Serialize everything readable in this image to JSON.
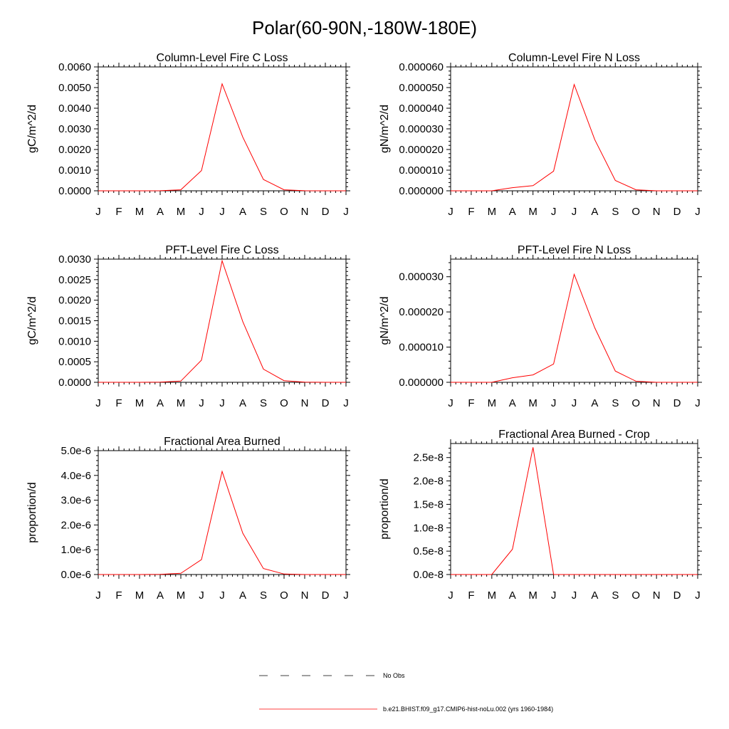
{
  "figure": {
    "title": "Polar(60-90N,-180W-180E)"
  },
  "legend": {
    "entries": [
      {
        "label": "No Obs",
        "style": "dashed",
        "color": "#000000"
      },
      {
        "label": "b.e21.BHIST.f09_g17.CMIP6-hist-noLu.002 (yrs 1960-1984)",
        "style": "solid",
        "color": "#ff0000"
      }
    ]
  },
  "chart_data": [
    {
      "type": "line",
      "title": "Column-Level Fire C Loss",
      "xlabel": "",
      "ylabel": "gC/m^2/d",
      "x": [
        "J",
        "F",
        "M",
        "A",
        "M",
        "J",
        "J",
        "A",
        "S",
        "O",
        "N",
        "D",
        "J"
      ],
      "ylim": [
        0,
        0.006
      ],
      "yticks": [
        "0.0000",
        "0.0010",
        "0.0020",
        "0.0030",
        "0.0040",
        "0.0050",
        "0.0060"
      ],
      "ytick_values": [
        0,
        0.001,
        0.002,
        0.003,
        0.004,
        0.005,
        0.006
      ],
      "grid": false,
      "series": [
        {
          "color": "#ff0000",
          "values": [
            0,
            0,
            0,
            5e-06,
            5e-05,
            0.00098,
            0.00518,
            0.0026,
            0.00055,
            5e-05,
            5e-06,
            0,
            0
          ]
        }
      ]
    },
    {
      "type": "line",
      "title": "Column-Level Fire N Loss",
      "xlabel": "",
      "ylabel": "gN/m^2/d",
      "x": [
        "J",
        "F",
        "M",
        "A",
        "M",
        "J",
        "J",
        "A",
        "S",
        "O",
        "N",
        "D",
        "J"
      ],
      "ylim": [
        0,
        6e-05
      ],
      "yticks": [
        "0.000000",
        "0.000010",
        "0.000020",
        "0.000030",
        "0.000040",
        "0.000050",
        "0.000060"
      ],
      "ytick_values": [
        0,
        1e-05,
        2e-05,
        3e-05,
        4e-05,
        5e-05,
        6e-05
      ],
      "grid": false,
      "series": [
        {
          "color": "#ff0000",
          "values": [
            0,
            0,
            0,
            1.5e-06,
            2.5e-06,
            9.5e-06,
            5.15e-05,
            2.48e-05,
            5e-06,
            5e-07,
            0,
            0,
            0
          ]
        }
      ]
    },
    {
      "type": "line",
      "title": "PFT-Level Fire C Loss",
      "xlabel": "",
      "ylabel": "gC/m^2/d",
      "x": [
        "J",
        "F",
        "M",
        "A",
        "M",
        "J",
        "J",
        "A",
        "S",
        "O",
        "N",
        "D",
        "J"
      ],
      "ylim": [
        0,
        0.003
      ],
      "yticks": [
        "0.0000",
        "0.0005",
        "0.0010",
        "0.0015",
        "0.0020",
        "0.0025",
        "0.0030"
      ],
      "ytick_values": [
        0,
        0.0005,
        0.001,
        0.0015,
        0.002,
        0.0025,
        0.003
      ],
      "grid": false,
      "series": [
        {
          "color": "#ff0000",
          "values": [
            0,
            0,
            0,
            3e-06,
            3e-05,
            0.00054,
            0.00296,
            0.00148,
            0.00032,
            4e-05,
            3e-06,
            0,
            0
          ]
        }
      ]
    },
    {
      "type": "line",
      "title": "PFT-Level Fire N Loss",
      "xlabel": "",
      "ylabel": "gN/m^2/d",
      "x": [
        "J",
        "F",
        "M",
        "A",
        "M",
        "J",
        "J",
        "A",
        "S",
        "O",
        "N",
        "D",
        "J"
      ],
      "ylim": [
        0,
        3.5e-05
      ],
      "yticks": [
        "0.000000",
        "0.000010",
        "0.000020",
        "0.000030"
      ],
      "ytick_values": [
        0,
        1e-05,
        2e-05,
        3e-05
      ],
      "grid": false,
      "series": [
        {
          "color": "#ff0000",
          "values": [
            0,
            0,
            0,
            1.3e-06,
            2.1e-06,
            5.2e-06,
            3.07e-05,
            1.55e-05,
            3.2e-06,
            3e-07,
            0,
            0,
            0
          ]
        }
      ]
    },
    {
      "type": "line",
      "title": "Fractional Area Burned",
      "xlabel": "",
      "ylabel": "proportion/d",
      "x": [
        "J",
        "F",
        "M",
        "A",
        "M",
        "J",
        "J",
        "A",
        "S",
        "O",
        "N",
        "D",
        "J"
      ],
      "ylim": [
        0,
        5e-06
      ],
      "yticks": [
        "0.0e-6",
        "1.0e-6",
        "2.0e-6",
        "3.0e-6",
        "4.0e-6",
        "5.0e-6"
      ],
      "ytick_values": [
        0,
        1e-06,
        2e-06,
        3e-06,
        4e-06,
        5e-06
      ],
      "grid": false,
      "series": [
        {
          "color": "#ff0000",
          "values": [
            0,
            0,
            0,
            5e-09,
            5e-08,
            6e-07,
            4.16e-06,
            1.67e-06,
            2.4e-07,
            2e-08,
            0,
            0,
            0
          ]
        }
      ]
    },
    {
      "type": "line",
      "title": "Fractional Area Burned - Crop",
      "xlabel": "",
      "ylabel": "proportion/d",
      "x": [
        "J",
        "F",
        "M",
        "A",
        "M",
        "J",
        "J",
        "A",
        "S",
        "O",
        "N",
        "D",
        "J"
      ],
      "ylim": [
        0,
        2.8e-08
      ],
      "yticks": [
        "0.0e-8",
        "0.5e-8",
        "1.0e-8",
        "1.5e-8",
        "2.0e-8",
        "2.5e-8"
      ],
      "ytick_values": [
        0,
        5e-09,
        1e-08,
        1.5e-08,
        2e-08,
        2.5e-08
      ],
      "grid": false,
      "series": [
        {
          "color": "#ff0000",
          "values": [
            0,
            0,
            0,
            5.4e-09,
            2.72e-08,
            0,
            0,
            0,
            0,
            0,
            0,
            0,
            0
          ]
        }
      ]
    }
  ]
}
